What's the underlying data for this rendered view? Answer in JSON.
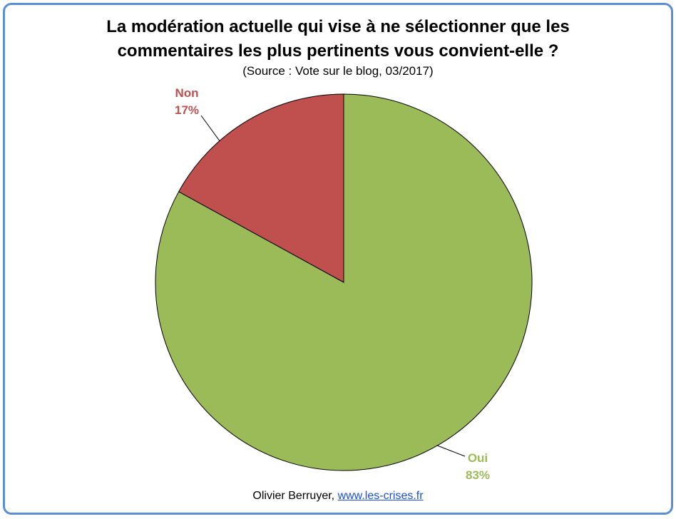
{
  "chart_data": {
    "type": "pie",
    "title_line1": "La modération actuelle qui vise à ne sélectionner que les",
    "title_line2": "commentaires les plus pertinents vous convient-elle ?",
    "subtitle": "(Source : Vote sur le blog, 03/2017)",
    "slices": [
      {
        "label": "Oui",
        "value": 83,
        "value_label": "83%",
        "color": "#9bbb59"
      },
      {
        "label": "Non",
        "value": 17,
        "value_label": "17%",
        "color": "#c0504d"
      }
    ]
  },
  "footer": {
    "author": "Olivier Berruyer,",
    "link": "www.les-crises.fr"
  }
}
